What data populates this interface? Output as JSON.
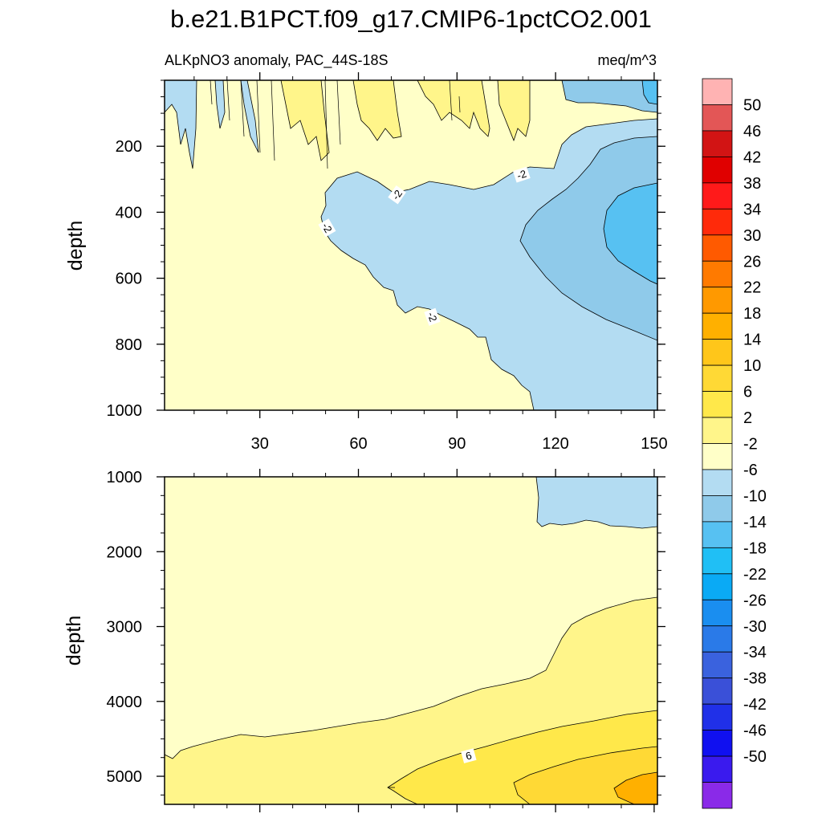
{
  "chart_data": {
    "type": "contour",
    "title": "b.e21.B1PCT.f09_g17.CMIP6-1pctCO2.001",
    "variable": "ALKpNO3 anomaly, PAC_44S-18S",
    "units": "meq/m^3",
    "xaxis": {
      "range": [
        1,
        151
      ],
      "ticks": [
        30,
        60,
        90,
        120,
        150
      ],
      "tick_labels": [
        "30",
        "60",
        "90",
        "120",
        "150"
      ]
    },
    "panels": [
      {
        "id": "upper",
        "ylabel": "depth",
        "yrange": [
          0,
          1000
        ],
        "yticks": [
          200,
          400,
          600,
          800,
          1000
        ],
        "ytick_labels": [
          "200",
          "400",
          "600",
          "800",
          "1000"
        ],
        "contour_labels": [
          "-2",
          "-2",
          "-2",
          "-2"
        ]
      },
      {
        "id": "lower",
        "ylabel": "depth",
        "yrange": [
          1000,
          5375
        ],
        "yticks": [
          1000,
          2000,
          3000,
          4000,
          5000
        ],
        "ytick_labels": [
          "1000",
          "2000",
          "3000",
          "4000",
          "5000"
        ],
        "contour_labels": [
          "6"
        ]
      }
    ],
    "colorbar": {
      "labels": [
        "50",
        "46",
        "42",
        "38",
        "34",
        "30",
        "26",
        "22",
        "18",
        "14",
        "10",
        "6",
        "2",
        "-2",
        "-6",
        "-10",
        "-14",
        "-18",
        "-22",
        "-26",
        "-30",
        "-34",
        "-38",
        "-42",
        "-46",
        "-50"
      ],
      "colors": [
        "#ffb3b3",
        "#e35656",
        "#d21414",
        "#e00000",
        "#ff1a1a",
        "#ff2a0a",
        "#ff5a00",
        "#ff7a00",
        "#ff9900",
        "#ffb000",
        "#ffc61a",
        "#ffd935",
        "#ffe84a",
        "#fff58a",
        "#ffffc8",
        "#b3dcf2",
        "#8fcaea",
        "#57c1f2",
        "#20bff5",
        "#0aaaf5",
        "#1a8ef0",
        "#2a7ae8",
        "#3a62de",
        "#3a50d8",
        "#2030e8",
        "#1010f0",
        "#3a1aee",
        "#8a2ae8"
      ]
    }
  }
}
